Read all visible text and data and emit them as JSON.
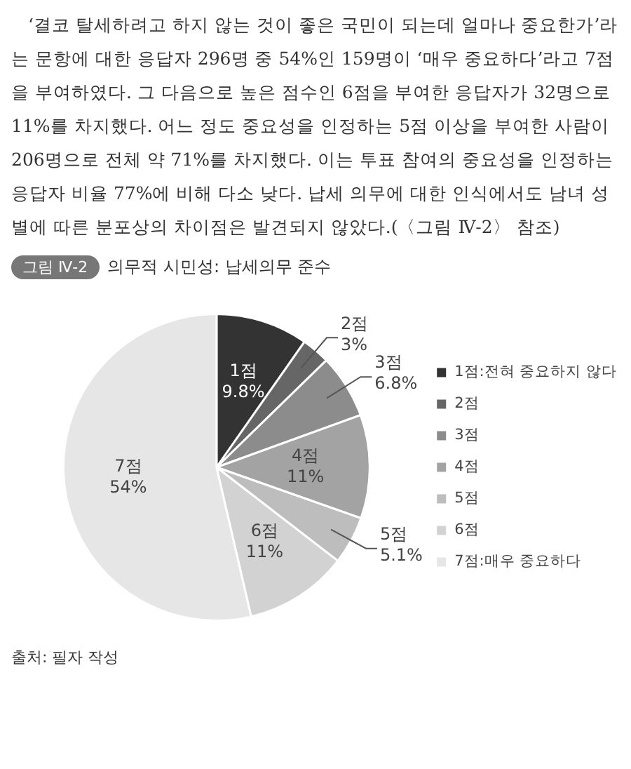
{
  "chart_data": {
    "type": "pie",
    "title": "의무적 시민성: 납세의무 준수",
    "subtitle": "그림 Ⅳ-2",
    "categories": [
      "1점:전혀 중요하지 않다",
      "2점",
      "3점",
      "4점",
      "5점",
      "6점",
      "7점:매우 중요하다"
    ],
    "values": [
      9.8,
      3,
      6.8,
      11,
      5.1,
      11,
      54
    ],
    "colors": [
      "#333333",
      "#666666",
      "#8c8c8c",
      "#a3a3a3",
      "#bdbdbd",
      "#d2d2d2",
      "#e6e6e6"
    ],
    "value_labels": [
      "1점\n9.8%",
      "2점\n3%",
      "3점\n6.8%",
      "4점\n11%",
      "5점\n5.1%",
      "6점\n11%",
      "7점\n54%"
    ],
    "legend": "right",
    "annotations": [
      "‘결코 탈세하려고 하지 않는 것이 좋은 국민이 되는데 얼마나 중요한가’라는 문항에 대한 응답자 296명 중 54%인 159명이 ‘매우 중요하다’라고 7점을 부여하였다. 그 다음으로 높은 점수인 6점을 부여한 응답자가 32명으로 11%를 차지했다. 어느 정도 중요성을 인정하는 5점 이상을 부여한 사람이 206명으로 전체 약 71%를 차지했다. 이는 투표 참여의 중요성을 인정하는 응답자 비율 77%에 비해 다소 낮다. 납세 의무에 대한 인식에서도 남녀 성별에 따른 분포상의 차이점은 발견되지 않았다.(〈그림 Ⅳ-2〉 참조)",
      "출처: 필자 작성"
    ]
  }
}
